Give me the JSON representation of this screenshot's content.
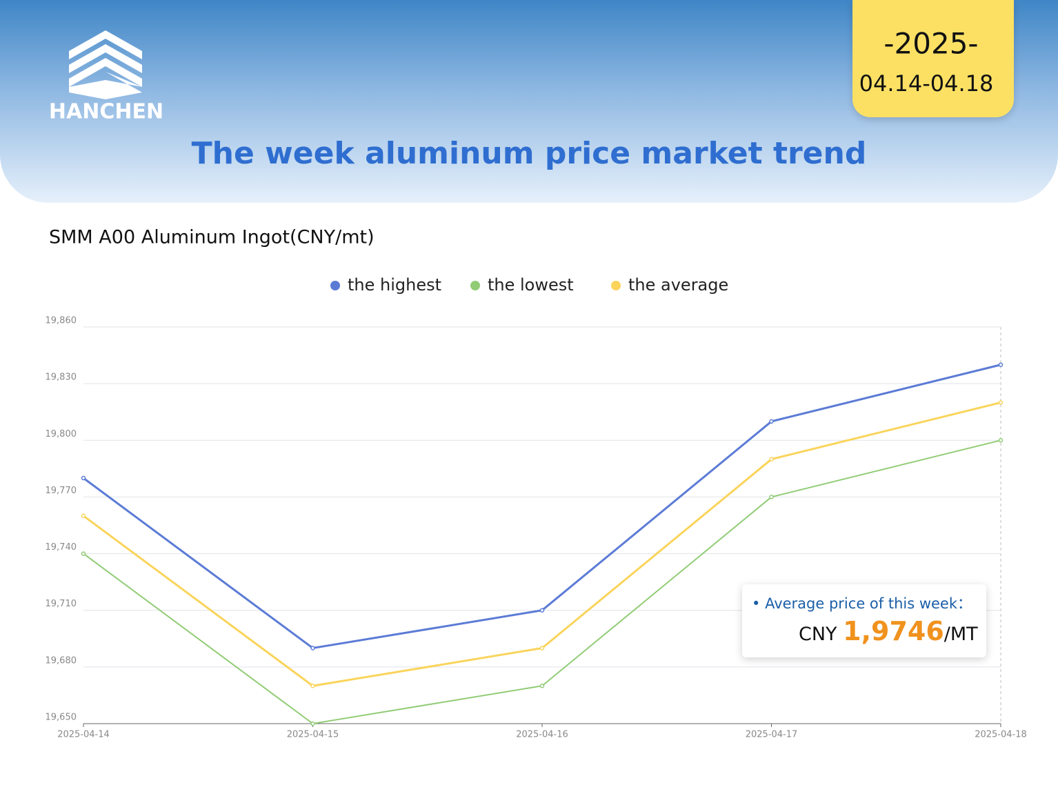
{
  "brand": "HANCHEN",
  "badge": {
    "year": "-2025-",
    "range": "04.14-04.18"
  },
  "headline": "The week aluminum price market trend",
  "chart_data": {
    "type": "line",
    "title": "SMM A00 Aluminum Ingot(CNY/mt)",
    "categories": [
      "2025-04-14",
      "2025-04-15",
      "2025-04-16",
      "2025-04-17",
      "2025-04-18"
    ],
    "series": [
      {
        "name": "the highest",
        "color": "#5b7bd5",
        "values": [
          19780,
          19690,
          19710,
          19810,
          19840
        ]
      },
      {
        "name": "the lowest",
        "color": "#91cc75",
        "values": [
          19740,
          19650,
          19670,
          19770,
          19800
        ]
      },
      {
        "name": "the average",
        "color": "#fad45b",
        "values": [
          19760,
          19670,
          19690,
          19790,
          19820
        ]
      }
    ],
    "ylim": [
      19650,
      19860
    ],
    "yticks": [
      {
        "value": 19650,
        "label": "19,650"
      },
      {
        "value": 19680,
        "label": "19,680"
      },
      {
        "value": 19710,
        "label": "19,710"
      },
      {
        "value": 19740,
        "label": "19,740"
      },
      {
        "value": 19770,
        "label": "19,770"
      },
      {
        "value": 19800,
        "label": "19,800"
      },
      {
        "value": 19830,
        "label": "19,830"
      },
      {
        "value": 19860,
        "label": "19,860"
      }
    ],
    "grid": true,
    "legend": "top",
    "annotation": {
      "label": "Average price of this week：",
      "currency": "CNY",
      "value": "1,9746",
      "unit": "/MT"
    }
  }
}
